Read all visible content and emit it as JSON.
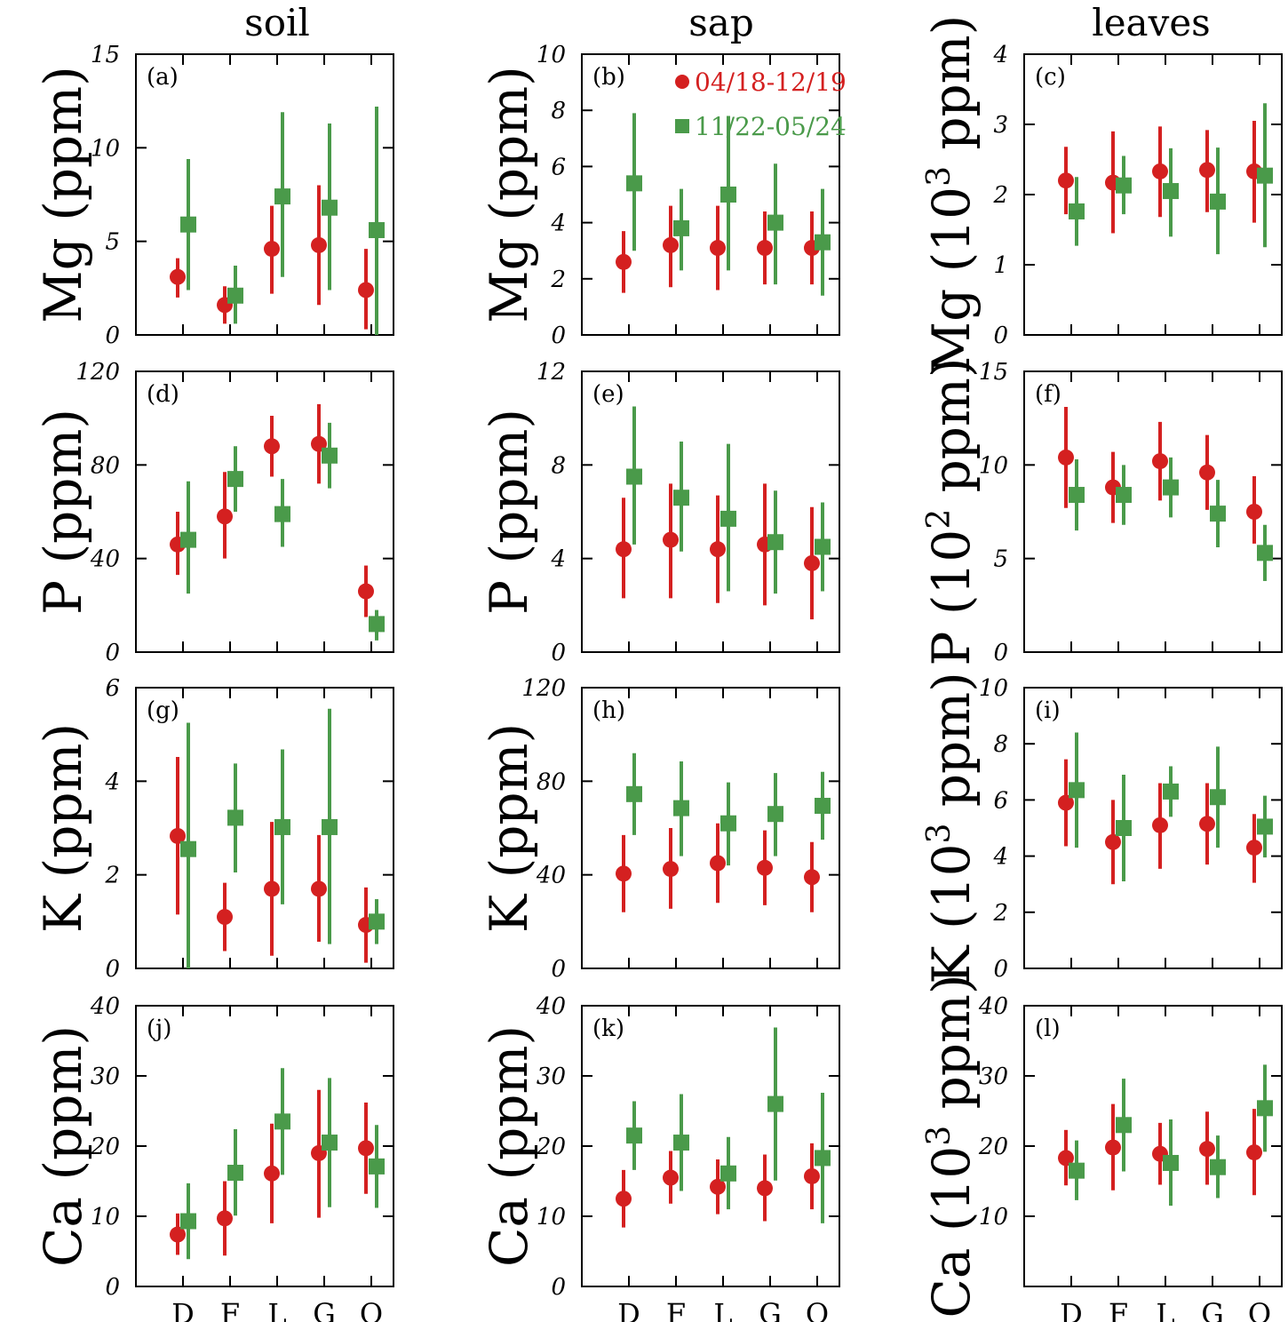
{
  "columns": [
    "soil",
    "sap",
    "leaves"
  ],
  "categories": [
    "D",
    "F",
    "L",
    "G",
    "O"
  ],
  "colors": {
    "series1": "#d42020",
    "series2": "#4a9a4a"
  },
  "chart_data": [
    {
      "tag": "(a)",
      "type": "scatter",
      "column": "soil",
      "ylabel": "Mg (ppm)",
      "ylim": [
        0,
        15
      ],
      "yticks": [
        0,
        5,
        10,
        15
      ],
      "legend": {
        "loc": "top-right",
        "entries": []
      },
      "series": [
        {
          "name": "04/18-12/19",
          "marker": "circle",
          "values": [
            3.1,
            1.6,
            4.6,
            4.8,
            2.4
          ],
          "low": [
            2.0,
            0.6,
            2.2,
            1.6,
            0.3
          ],
          "high": [
            4.1,
            2.6,
            6.9,
            8.0,
            4.6
          ]
        },
        {
          "name": "11/22-05/24",
          "marker": "square",
          "values": [
            5.9,
            2.1,
            7.4,
            6.8,
            5.6
          ],
          "low": [
            2.4,
            0.6,
            3.1,
            2.4,
            0.0
          ],
          "high": [
            9.4,
            3.7,
            11.9,
            11.3,
            12.2
          ]
        }
      ]
    },
    {
      "tag": "(b)",
      "type": "scatter",
      "column": "sap",
      "ylabel": "Mg (ppm)",
      "ylim": [
        0,
        10
      ],
      "yticks": [
        0,
        2,
        4,
        6,
        8,
        10
      ],
      "legend": {
        "loc": "top-right",
        "entries": [
          "04/18-12/19",
          "11/22-05/24"
        ]
      },
      "series": [
        {
          "name": "04/18-12/19",
          "marker": "circle",
          "values": [
            2.6,
            3.2,
            3.1,
            3.1,
            3.1
          ],
          "low": [
            1.5,
            1.7,
            1.6,
            1.8,
            1.8
          ],
          "high": [
            3.7,
            4.6,
            4.6,
            4.4,
            4.4
          ]
        },
        {
          "name": "11/22-05/24",
          "marker": "square",
          "values": [
            5.4,
            3.8,
            5.0,
            4.0,
            3.3
          ],
          "low": [
            3.0,
            2.3,
            2.3,
            1.8,
            1.4
          ],
          "high": [
            7.9,
            5.2,
            7.8,
            6.1,
            5.2
          ]
        }
      ]
    },
    {
      "tag": "(c)",
      "type": "scatter",
      "column": "leaves",
      "ylabel": "Mg (10^3 ppm)",
      "ylim": [
        0,
        4
      ],
      "yticks": [
        0,
        1,
        2,
        3,
        4
      ],
      "legend": {
        "loc": "top-right",
        "entries": []
      },
      "series": [
        {
          "name": "04/18-12/19",
          "marker": "circle",
          "values": [
            2.2,
            2.17,
            2.33,
            2.35,
            2.33
          ],
          "low": [
            1.72,
            1.45,
            1.68,
            1.75,
            1.6
          ],
          "high": [
            2.68,
            2.9,
            2.97,
            2.92,
            3.05
          ]
        },
        {
          "name": "11/22-05/24",
          "marker": "square",
          "values": [
            1.76,
            2.13,
            2.05,
            1.9,
            2.27
          ],
          "low": [
            1.27,
            1.72,
            1.4,
            1.15,
            1.25
          ],
          "high": [
            2.25,
            2.55,
            2.66,
            2.67,
            3.3
          ]
        }
      ]
    },
    {
      "tag": "(d)",
      "type": "scatter",
      "column": "soil",
      "ylabel": "P (ppm)",
      "ylim": [
        0,
        120
      ],
      "yticks": [
        0,
        40,
        80,
        120
      ],
      "legend": {
        "loc": "top-right",
        "entries": []
      },
      "series": [
        {
          "name": "04/18-12/19",
          "marker": "circle",
          "values": [
            46,
            58,
            88,
            89,
            26
          ],
          "low": [
            33,
            40,
            75,
            72,
            15
          ],
          "high": [
            60,
            77,
            101,
            106,
            37
          ]
        },
        {
          "name": "11/22-05/24",
          "marker": "square",
          "values": [
            48,
            74,
            59,
            84,
            12
          ],
          "low": [
            25,
            60,
            45,
            70,
            5
          ],
          "high": [
            73,
            88,
            74,
            98,
            18
          ]
        }
      ]
    },
    {
      "tag": "(e)",
      "type": "scatter",
      "column": "sap",
      "ylabel": "P (ppm)",
      "ylim": [
        0,
        12
      ],
      "yticks": [
        0,
        4,
        8,
        12
      ],
      "legend": {
        "loc": "top-right",
        "entries": []
      },
      "series": [
        {
          "name": "04/18-12/19",
          "marker": "circle",
          "values": [
            4.4,
            4.8,
            4.4,
            4.6,
            3.8
          ],
          "low": [
            2.3,
            2.3,
            2.1,
            2.0,
            1.4
          ],
          "high": [
            6.6,
            7.2,
            6.7,
            7.2,
            6.2
          ]
        },
        {
          "name": "11/22-05/24",
          "marker": "square",
          "values": [
            7.5,
            6.6,
            5.7,
            4.7,
            4.5
          ],
          "low": [
            4.6,
            4.3,
            2.6,
            2.5,
            2.6
          ],
          "high": [
            10.5,
            9.0,
            8.9,
            6.9,
            6.4
          ]
        }
      ]
    },
    {
      "tag": "(f)",
      "type": "scatter",
      "column": "leaves",
      "ylabel": "P (10^2 ppm)",
      "ylim": [
        0,
        15
      ],
      "yticks": [
        0,
        5,
        10,
        15
      ],
      "legend": {
        "loc": "top-right",
        "entries": []
      },
      "series": [
        {
          "name": "04/18-12/19",
          "marker": "circle",
          "values": [
            10.4,
            8.8,
            10.2,
            9.6,
            7.5
          ],
          "low": [
            7.7,
            6.9,
            8.1,
            7.6,
            5.8
          ],
          "high": [
            13.1,
            10.7,
            12.3,
            11.6,
            9.4
          ]
        },
        {
          "name": "11/22-05/24",
          "marker": "square",
          "values": [
            8.4,
            8.4,
            8.8,
            7.4,
            5.3
          ],
          "low": [
            6.5,
            6.8,
            7.2,
            5.6,
            3.8
          ],
          "high": [
            10.3,
            10.0,
            10.4,
            9.2,
            6.8
          ]
        }
      ]
    },
    {
      "tag": "(g)",
      "type": "scatter",
      "column": "soil",
      "ylabel": "K (ppm)",
      "ylim": [
        0,
        6
      ],
      "yticks": [
        0,
        2,
        4,
        6
      ],
      "legend": {
        "loc": "top-right",
        "entries": []
      },
      "series": [
        {
          "name": "04/18-12/19",
          "marker": "circle",
          "values": [
            2.83,
            1.1,
            1.7,
            1.7,
            0.93
          ],
          "low": [
            1.15,
            0.37,
            0.27,
            0.57,
            0.12
          ],
          "high": [
            4.52,
            1.83,
            3.13,
            2.85,
            1.73
          ]
        },
        {
          "name": "11/22-05/24",
          "marker": "square",
          "values": [
            2.55,
            3.22,
            3.02,
            3.02,
            1.0
          ],
          "low": [
            0.0,
            2.05,
            1.37,
            0.52,
            0.52
          ],
          "high": [
            5.25,
            4.38,
            4.68,
            5.55,
            1.48
          ]
        }
      ]
    },
    {
      "tag": "(h)",
      "type": "scatter",
      "column": "sap",
      "ylabel": "K (ppm)",
      "ylim": [
        0,
        120
      ],
      "yticks": [
        0,
        40,
        80,
        120
      ],
      "legend": {
        "loc": "top-right",
        "entries": []
      },
      "series": [
        {
          "name": "04/18-12/19",
          "marker": "circle",
          "values": [
            40.5,
            42.5,
            45,
            43,
            39
          ],
          "low": [
            24,
            25.5,
            28,
            27,
            24
          ],
          "high": [
            57,
            60,
            62,
            59,
            54
          ]
        },
        {
          "name": "11/22-05/24",
          "marker": "square",
          "values": [
            74.5,
            68.5,
            62,
            66,
            69.5
          ],
          "low": [
            57,
            48,
            44,
            48,
            55
          ],
          "high": [
            92,
            88.5,
            79.5,
            83.5,
            84
          ]
        }
      ]
    },
    {
      "tag": "(i)",
      "type": "scatter",
      "column": "leaves",
      "ylabel": "K (10^3 ppm)",
      "ylim": [
        0,
        10
      ],
      "yticks": [
        0,
        2,
        4,
        6,
        8,
        10
      ],
      "legend": {
        "loc": "top-right",
        "entries": []
      },
      "series": [
        {
          "name": "04/18-12/19",
          "marker": "circle",
          "values": [
            5.9,
            4.5,
            5.1,
            5.15,
            4.3
          ],
          "low": [
            4.35,
            3.0,
            3.55,
            3.7,
            3.05
          ],
          "high": [
            7.45,
            6.0,
            6.6,
            6.6,
            5.5
          ]
        },
        {
          "name": "11/22-05/24",
          "marker": "square",
          "values": [
            6.35,
            5.0,
            6.3,
            6.1,
            5.05
          ],
          "low": [
            4.3,
            3.1,
            5.4,
            4.3,
            3.95
          ],
          "high": [
            8.4,
            6.9,
            7.2,
            7.9,
            6.15
          ]
        }
      ]
    },
    {
      "tag": "(j)",
      "type": "scatter",
      "column": "soil",
      "ylabel": "Ca (ppm)",
      "ylim": [
        0,
        40
      ],
      "yticks": [
        0,
        10,
        20,
        30,
        40
      ],
      "legend": {
        "loc": "top-right",
        "entries": []
      },
      "series": [
        {
          "name": "04/18-12/19",
          "marker": "circle",
          "values": [
            7.4,
            9.7,
            16.1,
            19.0,
            19.7
          ],
          "low": [
            4.5,
            4.4,
            9.0,
            9.8,
            13.2
          ],
          "high": [
            10.4,
            15.0,
            23.2,
            28.0,
            26.2
          ]
        },
        {
          "name": "11/22-05/24",
          "marker": "square",
          "values": [
            9.3,
            16.2,
            23.5,
            20.5,
            17.1
          ],
          "low": [
            3.9,
            10.1,
            15.9,
            11.3,
            11.2
          ],
          "high": [
            14.7,
            22.4,
            31.1,
            29.7,
            23.0
          ]
        }
      ]
    },
    {
      "tag": "(k)",
      "type": "scatter",
      "column": "sap",
      "ylabel": "Ca (ppm)",
      "ylim": [
        0,
        40
      ],
      "yticks": [
        0,
        10,
        20,
        30,
        40
      ],
      "legend": {
        "loc": "top-right",
        "entries": []
      },
      "series": [
        {
          "name": "04/18-12/19",
          "marker": "circle",
          "values": [
            12.5,
            15.5,
            14.2,
            14.0,
            15.7
          ],
          "low": [
            8.4,
            11.8,
            10.3,
            9.3,
            11.0
          ],
          "high": [
            16.6,
            19.3,
            18.1,
            18.8,
            20.4
          ]
        },
        {
          "name": "11/22-05/24",
          "marker": "square",
          "values": [
            21.5,
            20.5,
            16.1,
            26.0,
            18.3
          ],
          "low": [
            16.6,
            13.6,
            11.0,
            15.1,
            9.0
          ],
          "high": [
            26.4,
            27.4,
            21.3,
            36.9,
            27.6
          ]
        }
      ]
    },
    {
      "tag": "(l)",
      "type": "scatter",
      "column": "leaves",
      "ylabel": "Ca (10^3 ppm)",
      "ylim": [
        0,
        40
      ],
      "yticks": [
        10,
        20,
        30,
        40
      ],
      "legend": {
        "loc": "top-right",
        "entries": []
      },
      "series": [
        {
          "name": "04/18-12/19",
          "marker": "circle",
          "values": [
            18.3,
            19.8,
            18.9,
            19.6,
            19.1
          ],
          "low": [
            14.4,
            13.7,
            14.5,
            14.5,
            13.0
          ],
          "high": [
            22.3,
            26.0,
            23.3,
            24.9,
            25.3
          ]
        },
        {
          "name": "11/22-05/24",
          "marker": "square",
          "values": [
            16.5,
            23.0,
            17.6,
            17.0,
            25.4
          ],
          "low": [
            12.3,
            16.4,
            11.5,
            12.6,
            19.2
          ],
          "high": [
            20.8,
            29.6,
            23.8,
            21.5,
            31.6
          ]
        }
      ]
    }
  ]
}
